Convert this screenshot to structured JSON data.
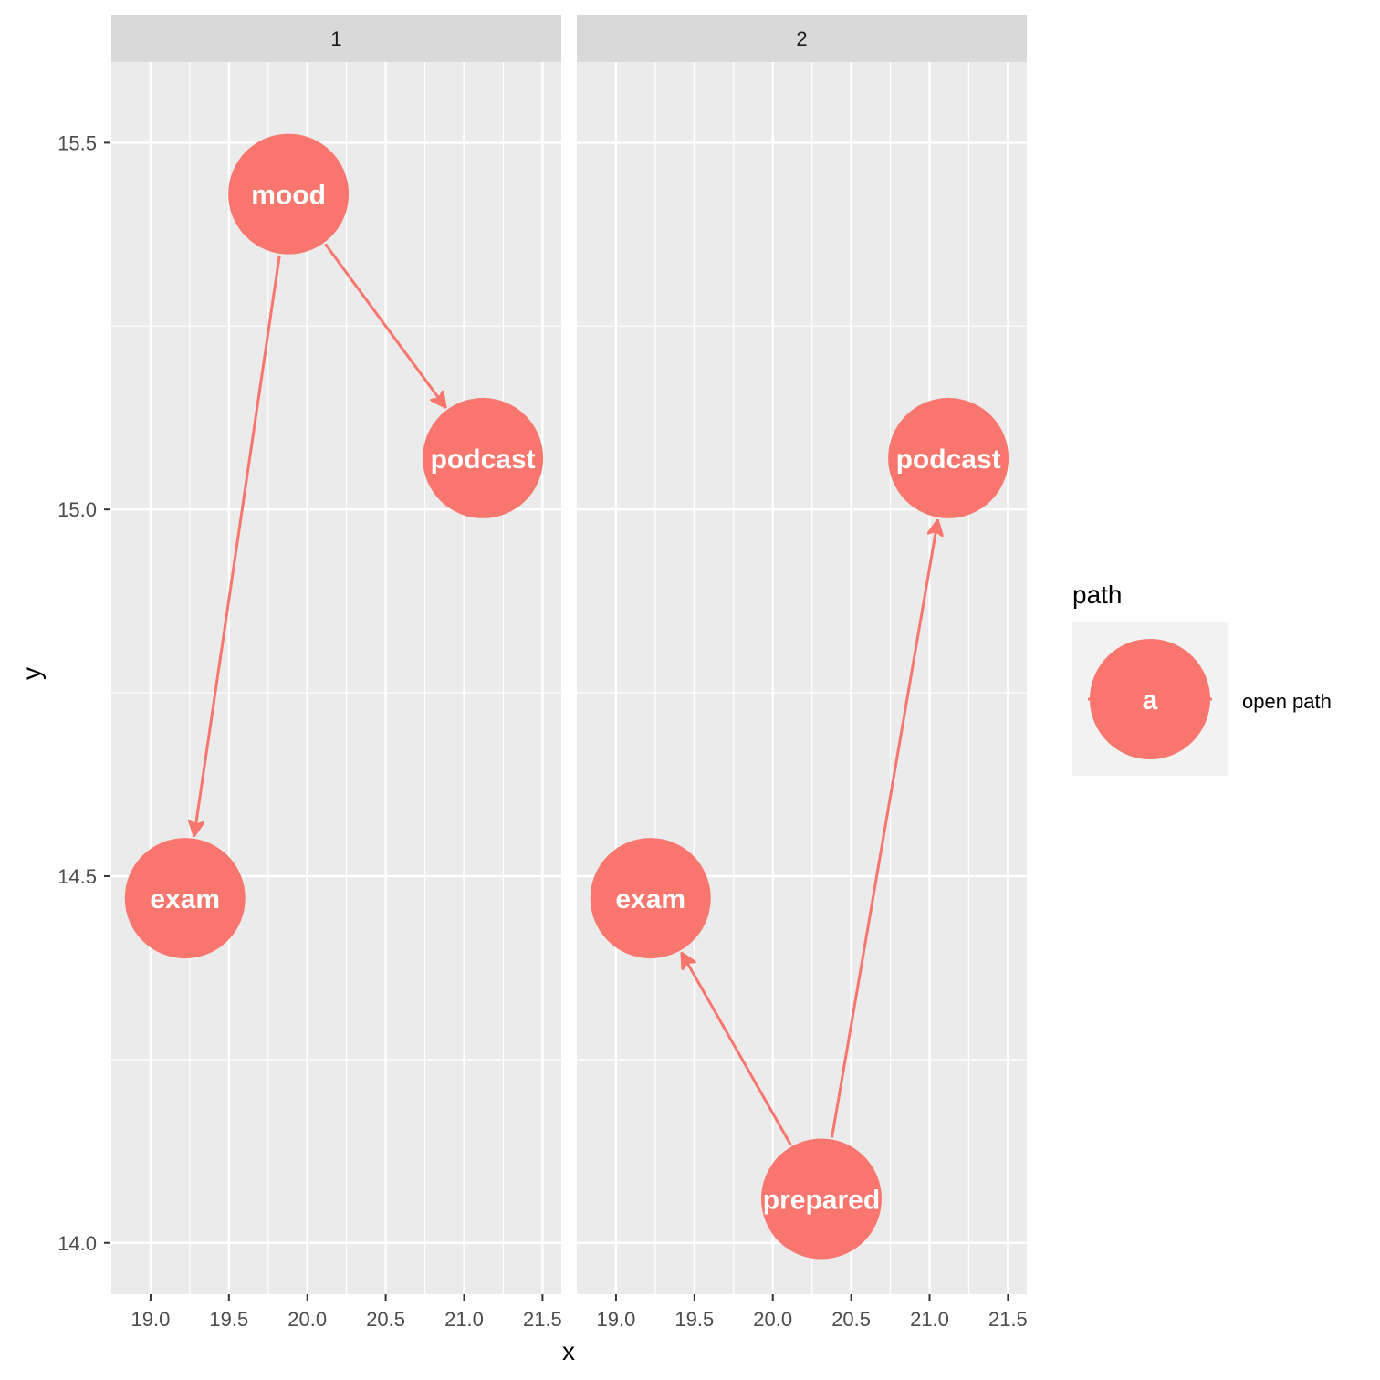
{
  "chart_data": {
    "type": "scatter",
    "xlabel": "x",
    "ylabel": "y",
    "xlim": [
      18.75,
      21.62
    ],
    "ylim": [
      13.93,
      15.61
    ],
    "x_ticks": [
      19.0,
      19.5,
      20.0,
      20.5,
      21.0,
      21.5
    ],
    "x_tick_labels": [
      "19.0",
      "19.5",
      "20.0",
      "20.5",
      "21.0",
      "21.5"
    ],
    "y_ticks": [
      14.0,
      14.5,
      15.0,
      15.5
    ],
    "y_tick_labels": [
      "14.0",
      "14.5",
      "15.0",
      "15.5"
    ],
    "grid": true,
    "node_color": "#F8766D",
    "node_text_color": "#FFFFFF",
    "panel_background": "#EBEBEB",
    "strip_background": "#D9D9D9",
    "facets": [
      {
        "label": "1",
        "nodes": [
          {
            "name": "mood",
            "x": 19.88,
            "y": 15.43
          },
          {
            "name": "podcast",
            "x": 21.12,
            "y": 15.07
          },
          {
            "name": "exam",
            "x": 19.22,
            "y": 14.47
          }
        ],
        "edges": [
          {
            "from": "mood",
            "to": "podcast"
          },
          {
            "from": "mood",
            "to": "exam"
          }
        ]
      },
      {
        "label": "2",
        "nodes": [
          {
            "name": "podcast",
            "x": 21.12,
            "y": 15.07
          },
          {
            "name": "exam",
            "x": 19.22,
            "y": 14.47
          },
          {
            "name": "prepared",
            "x": 20.31,
            "y": 14.06
          }
        ],
        "edges": [
          {
            "from": "prepared",
            "to": "exam"
          },
          {
            "from": "prepared",
            "to": "podcast"
          }
        ]
      }
    ],
    "legend": {
      "title": "path",
      "position": "right",
      "entries": [
        {
          "key_label": "a",
          "label": "open path",
          "color": "#F8766D"
        }
      ]
    }
  }
}
